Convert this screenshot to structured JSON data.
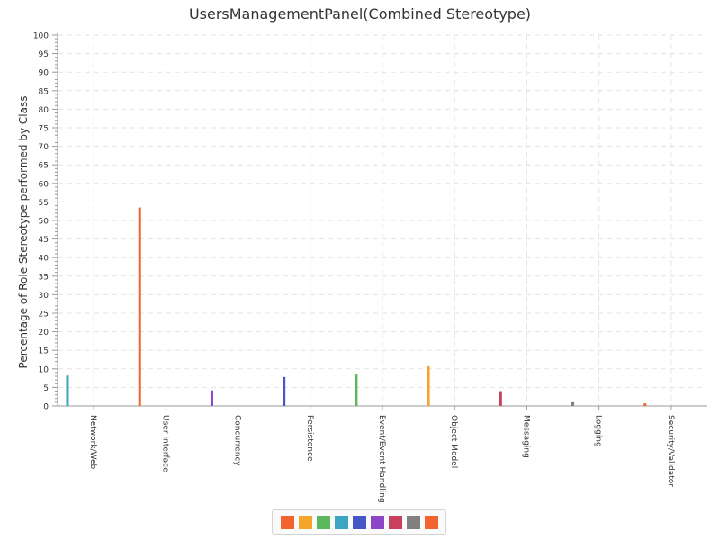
{
  "chart_data": {
    "type": "bar",
    "title": "UsersManagementPanel(Combined Stereotype)",
    "xlabel": "",
    "ylabel": "Percentage of Role Stereotype performed by Class",
    "ylim": [
      0,
      100
    ],
    "yticks": [
      0,
      5,
      10,
      15,
      20,
      25,
      30,
      35,
      40,
      45,
      50,
      55,
      60,
      65,
      70,
      75,
      80,
      85,
      90,
      95,
      100
    ],
    "grid": true,
    "legend_position": "bottom",
    "categories": [
      "Network/Web",
      "User Interface",
      "Concurrency",
      "Persistence",
      "Event/Event Handling",
      "Object Model",
      "Messaging",
      "Logging",
      "Security/Validator"
    ],
    "values": [
      8.2,
      53.5,
      4.2,
      7.8,
      8.5,
      10.7,
      4.0,
      1.0,
      0.7
    ],
    "colors": [
      "#3aa6c4",
      "#f2632f",
      "#8f45c7",
      "#4557c7",
      "#5cb85c",
      "#f4a52a",
      "#c8405e",
      "#808080",
      "#f2632f"
    ],
    "legend_colors": [
      "#f2632f",
      "#f4a52a",
      "#5cb85c",
      "#3aa6c4",
      "#4557c7",
      "#8f45c7",
      "#c8405e",
      "#808080",
      "#f2632f"
    ]
  }
}
